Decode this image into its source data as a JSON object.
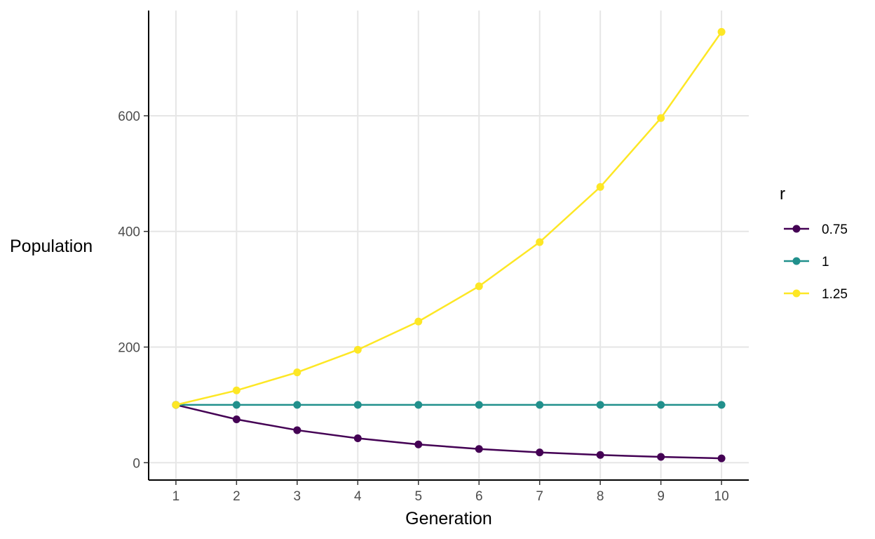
{
  "chart_data": {
    "type": "line",
    "title": "",
    "xlabel": "Generation",
    "ylabel": "Population",
    "x": [
      1,
      2,
      3,
      4,
      5,
      6,
      7,
      8,
      9,
      10
    ],
    "x_ticks": [
      1,
      2,
      3,
      4,
      5,
      6,
      7,
      8,
      9,
      10
    ],
    "y_ticks": [
      0,
      200,
      400,
      600
    ],
    "xlim": [
      0.55,
      10.45
    ],
    "ylim": [
      -30,
      782
    ],
    "grid": true,
    "legend": {
      "title": "r",
      "position": "right"
    },
    "series": [
      {
        "name": "0.75",
        "color": "#440154",
        "values": [
          100,
          75,
          56.25,
          42.19,
          31.64,
          23.73,
          17.8,
          13.35,
          10.01,
          7.51
        ]
      },
      {
        "name": "1",
        "color": "#21908C",
        "values": [
          100,
          100,
          100,
          100,
          100,
          100,
          100,
          100,
          100,
          100
        ]
      },
      {
        "name": "1.25",
        "color": "#FDE725",
        "values": [
          100,
          125,
          156.25,
          195.31,
          244.14,
          305.18,
          381.47,
          476.84,
          596.05,
          745.06
        ]
      }
    ]
  }
}
